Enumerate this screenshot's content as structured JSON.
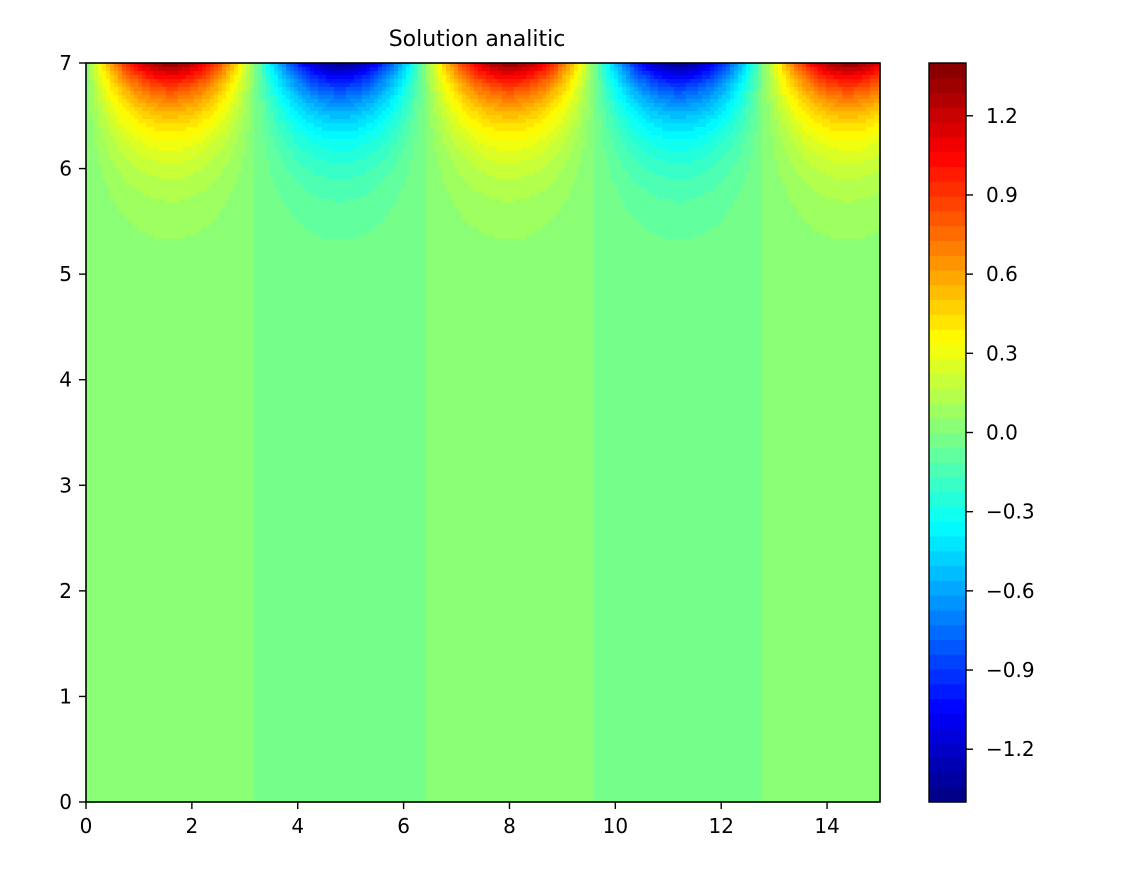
{
  "chart_data": {
    "type": "heatmap",
    "subtype": "filled-contour",
    "title": "Solution analitic",
    "xlabel": "",
    "ylabel": "",
    "xlim": [
      0,
      15
    ],
    "ylim": [
      0,
      7
    ],
    "x_ticks": [
      0,
      2,
      4,
      6,
      8,
      10,
      12,
      14
    ],
    "y_ticks": [
      0,
      1,
      2,
      3,
      4,
      5,
      6,
      7
    ],
    "x_tick_labels": [
      "0",
      "2",
      "4",
      "6",
      "8",
      "10",
      "12",
      "14"
    ],
    "y_tick_labels": [
      "0",
      "1",
      "2",
      "3",
      "4",
      "5",
      "6",
      "7"
    ],
    "field": {
      "description_of_values": "z(x, y) = A * sin(k * x) * exp(b * (y - 7))",
      "amplitude": 1.35,
      "x_period": 6.4,
      "zero_crossings_x": [
        0,
        3.2,
        6.4,
        9.6,
        12.8
      ],
      "maxima": [
        {
          "x": 1.6,
          "y": 7,
          "value": 1.35
        },
        {
          "x": 8.0,
          "y": 7,
          "value": 1.35
        },
        {
          "x": 14.4,
          "y": 7,
          "value": 1.35
        }
      ],
      "minima": [
        {
          "x": 4.8,
          "y": 7,
          "value": -1.35
        },
        {
          "x": 11.2,
          "y": 7,
          "value": -1.35
        }
      ],
      "decay_rate_y": 1.9
    },
    "levels": {
      "min": -1.4,
      "max": 1.4,
      "count": 50
    },
    "colorbar": {
      "position": "right",
      "colormap": "jet",
      "range": [
        -1.4,
        1.4
      ],
      "ticks": [
        1.2,
        0.9,
        0.6,
        0.3,
        0.0,
        -0.3,
        -0.6,
        -0.9,
        -1.2
      ],
      "tick_labels": [
        "1.2",
        "0.9",
        "0.6",
        "0.3",
        "0.0",
        "−0.3",
        "−0.6",
        "−0.9",
        "−1.2"
      ]
    },
    "grid": false,
    "legend": "none"
  }
}
